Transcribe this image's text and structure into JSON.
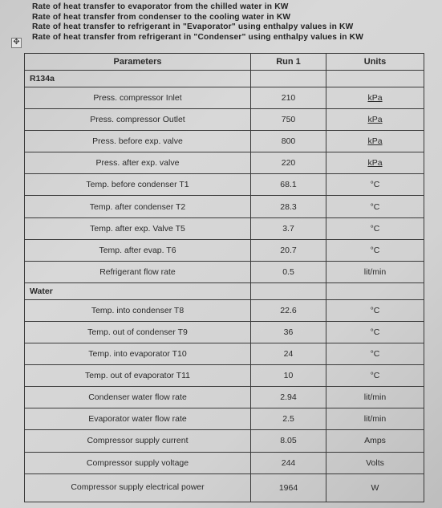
{
  "notes": [
    "Rate of heat transfer to evaporator from the chilled water in KW",
    "Rate of heat transfer from condenser to the cooling water in KW",
    "Rate of heat transfer to refrigerant in \"Evaporator\" using enthalpy values in KW",
    "Rate of heat transfer from refrigerant in \"Condenser\" using enthalpy values in KW"
  ],
  "table": {
    "headers": {
      "parameters": "Parameters",
      "run": "Run 1",
      "units": "Units"
    },
    "sections": [
      {
        "name": "R134a",
        "rows": [
          {
            "parameter": "Press. compressor Inlet",
            "value": "210",
            "unit": "kPa"
          },
          {
            "parameter": "Press. compressor Outlet",
            "value": "750",
            "unit": "kPa"
          },
          {
            "parameter": "Press. before exp. valve",
            "value": "800",
            "unit": "kPa"
          },
          {
            "parameter": "Press. after exp. valve",
            "value": "220",
            "unit": "kPa"
          },
          {
            "parameter": "Temp. before condenser T1",
            "value": "68.1",
            "unit": "°C"
          },
          {
            "parameter": "Temp. after condenser T2",
            "value": "28.3",
            "unit": "°C"
          },
          {
            "parameter": "Temp. after exp. Valve T5",
            "value": "3.7",
            "unit": "°C"
          },
          {
            "parameter": "Temp. after evap. T6",
            "value": "20.7",
            "unit": "°C"
          },
          {
            "parameter": "Refrigerant flow rate",
            "value": "0.5",
            "unit": "lit/min"
          }
        ]
      },
      {
        "name": "Water",
        "rows": [
          {
            "parameter": "Temp. into condenser T8",
            "value": "22.6",
            "unit": "°C"
          },
          {
            "parameter": "Temp. out of condenser T9",
            "value": "36",
            "unit": "°C"
          },
          {
            "parameter": "Temp. into evaporator T10",
            "value": "24",
            "unit": "°C"
          },
          {
            "parameter": "Temp. out of evaporator T11",
            "value": "10",
            "unit": "°C"
          },
          {
            "parameter": "Condenser water flow rate",
            "value": "2.94",
            "unit": "lit/min"
          },
          {
            "parameter": "Evaporator water flow rate",
            "value": "2.5",
            "unit": "lit/min"
          },
          {
            "parameter": "Compressor supply current",
            "value": "8.05",
            "unit": "Amps"
          },
          {
            "parameter": "Compressor supply voltage",
            "value": "244",
            "unit": "Volts"
          },
          {
            "parameter": "Compressor supply electrical power",
            "value": "1964",
            "unit": "W"
          }
        ]
      }
    ]
  }
}
